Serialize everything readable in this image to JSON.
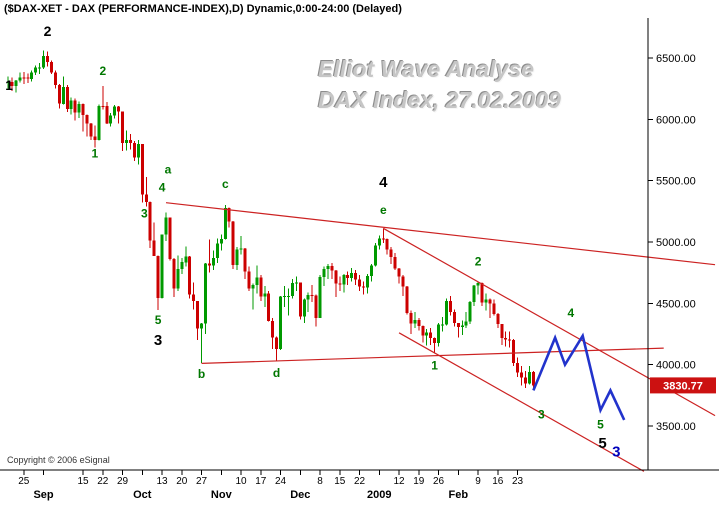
{
  "title_bar": {
    "text": "($DAX-XET - DAX (PERFORMANCE-INDEX),D) Dynamic,0:00-24:00 (Delayed)"
  },
  "watermark": {
    "line1": "Elliot Wave Analyse",
    "line2": "DAX Index, 27.02.2009"
  },
  "copyright": "Copyright © 2006 eSignal",
  "colors": {
    "up": "#009900",
    "down": "#cc0000",
    "trendline": "#cc2222",
    "projection": "#2233cc",
    "wave_green": "#007700",
    "wave_black": "#000000",
    "wave_blue": "#0000bb",
    "axis": "#000000",
    "price_box_bg": "#cc1111",
    "price_box_text": "#ffffff"
  },
  "chart_data": {
    "type": "candlestick",
    "symbol": "$DAX-XET",
    "interval": "D",
    "last_price": 3830.77,
    "ylim": [
      3140,
      6750
    ],
    "y_axis": {
      "values": [
        6500,
        6000,
        5500,
        5000,
        4500,
        4000,
        3500
      ],
      "labels": [
        "6500.00",
        "6000.00",
        "5500.00",
        "5000.00",
        "4500.00",
        "4000.00",
        "3500.00"
      ]
    },
    "price_box": {
      "value": "3830.77",
      "price": 3830.77
    },
    "x_axis": {
      "ticks": [
        {
          "i": 4,
          "label": "25",
          "bold": false
        },
        {
          "i": 9,
          "label": "Sep",
          "bold": true
        },
        {
          "i": 19,
          "label": "15",
          "bold": false
        },
        {
          "i": 24,
          "label": "22",
          "bold": false
        },
        {
          "i": 29,
          "label": "29",
          "bold": false
        },
        {
          "i": 34,
          "label": "Oct",
          "bold": true
        },
        {
          "i": 39,
          "label": "13",
          "bold": false
        },
        {
          "i": 44,
          "label": "20",
          "bold": false
        },
        {
          "i": 49,
          "label": "27",
          "bold": false
        },
        {
          "i": 54,
          "label": "Nov",
          "bold": true
        },
        {
          "i": 59,
          "label": "10",
          "bold": false
        },
        {
          "i": 64,
          "label": "17",
          "bold": false
        },
        {
          "i": 69,
          "label": "24",
          "bold": false
        },
        {
          "i": 74,
          "label": "Dec",
          "bold": true
        },
        {
          "i": 79,
          "label": "8",
          "bold": false
        },
        {
          "i": 84,
          "label": "15",
          "bold": false
        },
        {
          "i": 89,
          "label": "22",
          "bold": false
        },
        {
          "i": 94,
          "label": "2009",
          "bold": true
        },
        {
          "i": 99,
          "label": "12",
          "bold": false
        },
        {
          "i": 104,
          "label": "19",
          "bold": false
        },
        {
          "i": 109,
          "label": "26",
          "bold": false
        },
        {
          "i": 114,
          "label": "Feb",
          "bold": true
        },
        {
          "i": 119,
          "label": "9",
          "bold": false
        },
        {
          "i": 124,
          "label": "16",
          "bold": false
        },
        {
          "i": 129,
          "label": "23",
          "bold": false
        }
      ]
    },
    "ohlc": [
      [
        6300,
        6350,
        6250,
        6305
      ],
      [
        6305,
        6340,
        6230,
        6273
      ],
      [
        6273,
        6320,
        6220,
        6317
      ],
      [
        6317,
        6380,
        6300,
        6342
      ],
      [
        6342,
        6385,
        6290,
        6340
      ],
      [
        6340,
        6375,
        6295,
        6331
      ],
      [
        6331,
        6400,
        6310,
        6383
      ],
      [
        6383,
        6440,
        6360,
        6422
      ],
      [
        6422,
        6460,
        6370,
        6422
      ],
      [
        6422,
        6560,
        6410,
        6518
      ],
      [
        6518,
        6555,
        6430,
        6469
      ],
      [
        6469,
        6480,
        6370,
        6382
      ],
      [
        6382,
        6400,
        6250,
        6279
      ],
      [
        6279,
        6290,
        6090,
        6127
      ],
      [
        6127,
        6350,
        6120,
        6263
      ],
      [
        6263,
        6280,
        6060,
        6085
      ],
      [
        6085,
        6180,
        6040,
        6155
      ],
      [
        6155,
        6170,
        5990,
        6056
      ],
      [
        6056,
        6145,
        6010,
        6125
      ],
      [
        6125,
        6130,
        5900,
        6034
      ],
      [
        6034,
        6040,
        5860,
        5965
      ],
      [
        5965,
        5970,
        5830,
        5861
      ],
      [
        5861,
        5950,
        5770,
        5830
      ],
      [
        5830,
        6120,
        5828,
        6110
      ],
      [
        6110,
        6270,
        6080,
        6107
      ],
      [
        6107,
        6140,
        5960,
        5965
      ],
      [
        5965,
        6050,
        5940,
        6031
      ],
      [
        6031,
        6115,
        6005,
        6105
      ],
      [
        6105,
        6110,
        5965,
        6063
      ],
      [
        6063,
        6064,
        5740,
        5807
      ],
      [
        5807,
        5910,
        5745,
        5831
      ],
      [
        5831,
        5880,
        5755,
        5806
      ],
      [
        5806,
        5825,
        5660,
        5688
      ],
      [
        5688,
        5830,
        5630,
        5797
      ],
      [
        5797,
        5800,
        5320,
        5387
      ],
      [
        5387,
        5530,
        5290,
        5326
      ],
      [
        5326,
        5330,
        4950,
        5013
      ],
      [
        5013,
        5160,
        4885,
        4887
      ],
      [
        4887,
        4890,
        4444,
        4544
      ],
      [
        4544,
        5062,
        4540,
        5062
      ],
      [
        5062,
        5240,
        5010,
        5199
      ],
      [
        5199,
        5200,
        4850,
        4861
      ],
      [
        4861,
        4870,
        4550,
        4622
      ],
      [
        4622,
        4890,
        4600,
        4781
      ],
      [
        4781,
        4870,
        4740,
        4835
      ],
      [
        4835,
        4965,
        4800,
        4883
      ],
      [
        4883,
        4885,
        4540,
        4571
      ],
      [
        4571,
        4670,
        4450,
        4519
      ],
      [
        4519,
        4520,
        4200,
        4295
      ],
      [
        4295,
        4340,
        4014,
        4334
      ],
      [
        4334,
        4830,
        4250,
        4823
      ],
      [
        4823,
        5020,
        4750,
        4808
      ],
      [
        4808,
        4930,
        4770,
        4869
      ],
      [
        4869,
        5030,
        4830,
        4987
      ],
      [
        4987,
        5060,
        4930,
        5026
      ],
      [
        5026,
        5300,
        5020,
        5278
      ],
      [
        5278,
        5280,
        5120,
        5166
      ],
      [
        5166,
        5170,
        4780,
        4813
      ],
      [
        4813,
        4960,
        4770,
        4938
      ],
      [
        4938,
        5050,
        4900,
        4946
      ],
      [
        4946,
        4950,
        4700,
        4761
      ],
      [
        4761,
        4800,
        4600,
        4620
      ],
      [
        4620,
        4660,
        4450,
        4649
      ],
      [
        4649,
        4810,
        4580,
        4710
      ],
      [
        4710,
        4730,
        4520,
        4557
      ],
      [
        4557,
        4640,
        4470,
        4579
      ],
      [
        4579,
        4600,
        4350,
        4354
      ],
      [
        4354,
        4380,
        4127,
        4220
      ],
      [
        4220,
        4230,
        4034,
        4127
      ],
      [
        4127,
        4560,
        4120,
        4554
      ],
      [
        4554,
        4640,
        4470,
        4560
      ],
      [
        4560,
        4620,
        4400,
        4560
      ],
      [
        4560,
        4700,
        4540,
        4665
      ],
      [
        4665,
        4720,
        4600,
        4669
      ],
      [
        4669,
        4670,
        4370,
        4394
      ],
      [
        4394,
        4540,
        4340,
        4531
      ],
      [
        4531,
        4590,
        4430,
        4567
      ],
      [
        4567,
        4650,
        4510,
        4564
      ],
      [
        4564,
        4570,
        4310,
        4381
      ],
      [
        4381,
        4730,
        4380,
        4715
      ],
      [
        4715,
        4800,
        4640,
        4779
      ],
      [
        4779,
        4820,
        4700,
        4805
      ],
      [
        4805,
        4830,
        4700,
        4767
      ],
      [
        4767,
        4770,
        4550,
        4663
      ],
      [
        4663,
        4720,
        4600,
        4655
      ],
      [
        4655,
        4740,
        4590,
        4729
      ],
      [
        4729,
        4760,
        4650,
        4708
      ],
      [
        4708,
        4790,
        4680,
        4748
      ],
      [
        4748,
        4770,
        4650,
        4696
      ],
      [
        4696,
        4730,
        4600,
        4639
      ],
      [
        4639,
        4680,
        4570,
        4629
      ],
      [
        4629,
        4740,
        4580,
        4724
      ],
      [
        4724,
        4820,
        4680,
        4810
      ],
      [
        4810,
        4990,
        4800,
        4973
      ],
      [
        4973,
        5055,
        4940,
        5027
      ],
      [
        5027,
        5112,
        4990,
        5026
      ],
      [
        5026,
        5030,
        4900,
        4937
      ],
      [
        4937,
        4960,
        4820,
        4879
      ],
      [
        4879,
        4910,
        4770,
        4783
      ],
      [
        4783,
        4790,
        4660,
        4719
      ],
      [
        4719,
        4730,
        4560,
        4637
      ],
      [
        4637,
        4640,
        4410,
        4422
      ],
      [
        4422,
        4440,
        4250,
        4336
      ],
      [
        4336,
        4430,
        4300,
        4366
      ],
      [
        4366,
        4380,
        4280,
        4316
      ],
      [
        4316,
        4320,
        4180,
        4239
      ],
      [
        4239,
        4290,
        4155,
        4261
      ],
      [
        4261,
        4300,
        4160,
        4219
      ],
      [
        4219,
        4220,
        4090,
        4178
      ],
      [
        4178,
        4340,
        4150,
        4326
      ],
      [
        4326,
        4390,
        4270,
        4327
      ],
      [
        4327,
        4540,
        4320,
        4519
      ],
      [
        4519,
        4560,
        4400,
        4428
      ],
      [
        4428,
        4450,
        4310,
        4338
      ],
      [
        4338,
        4340,
        4220,
        4307
      ],
      [
        4307,
        4360,
        4240,
        4319
      ],
      [
        4319,
        4430,
        4300,
        4350
      ],
      [
        4350,
        4520,
        4330,
        4510
      ],
      [
        4510,
        4650,
        4480,
        4645
      ],
      [
        4645,
        4675,
        4570,
        4667
      ],
      [
        4667,
        4670,
        4480,
        4505
      ],
      [
        4505,
        4580,
        4440,
        4531
      ],
      [
        4531,
        4540,
        4380,
        4500
      ],
      [
        4500,
        4530,
        4400,
        4413
      ],
      [
        4413,
        4420,
        4300,
        4330
      ],
      [
        4330,
        4330,
        4160,
        4217
      ],
      [
        4217,
        4270,
        4150,
        4204
      ],
      [
        4204,
        4270,
        4140,
        4202
      ],
      [
        4202,
        4210,
        3990,
        4014
      ],
      [
        4014,
        4060,
        3900,
        3936
      ],
      [
        3936,
        3990,
        3830,
        3896
      ],
      [
        3896,
        3950,
        3810,
        3847
      ],
      [
        3847,
        3990,
        3840,
        3942
      ],
      [
        3942,
        3950,
        3800,
        3831
      ]
    ],
    "annotations": {
      "wave_labels": [
        {
          "text": "1",
          "i": 0.3,
          "price": 6240,
          "color": "black",
          "size": 14
        },
        {
          "text": "2",
          "i": 10,
          "price": 6680,
          "color": "black",
          "size": 14
        },
        {
          "text": "1",
          "i": 22,
          "price": 5690,
          "color": "green",
          "size": 12
        },
        {
          "text": "2",
          "i": 24,
          "price": 6360,
          "color": "green",
          "size": 12
        },
        {
          "text": "3",
          "i": 34.5,
          "price": 5200,
          "color": "green",
          "size": 12
        },
        {
          "text": "4",
          "i": 39,
          "price": 5410,
          "color": "green",
          "size": 12
        },
        {
          "text": "a",
          "i": 40.5,
          "price": 5560,
          "color": "green",
          "size": 12
        },
        {
          "text": "5",
          "i": 38,
          "price": 4330,
          "color": "green",
          "size": 12
        },
        {
          "text": "3",
          "i": 38,
          "price": 4160,
          "color": "black",
          "size": 15
        },
        {
          "text": "b",
          "i": 49,
          "price": 3890,
          "color": "green",
          "size": 12
        },
        {
          "text": "c",
          "i": 55,
          "price": 5440,
          "color": "green",
          "size": 12
        },
        {
          "text": "d",
          "i": 68,
          "price": 3900,
          "color": "green",
          "size": 12
        },
        {
          "text": "4",
          "i": 95,
          "price": 5450,
          "color": "black",
          "size": 15
        },
        {
          "text": "e",
          "i": 95,
          "price": 5230,
          "color": "green",
          "size": 12
        },
        {
          "text": "1",
          "i": 108,
          "price": 3960,
          "color": "green",
          "size": 12
        },
        {
          "text": "2",
          "i": 119,
          "price": 4810,
          "color": "green",
          "size": 12
        },
        {
          "text": "3",
          "i": 135,
          "price": 3560,
          "color": "green",
          "size": 12
        },
        {
          "text": "4",
          "i": 142.5,
          "price": 4390,
          "color": "green",
          "size": 12
        },
        {
          "text": "5",
          "i": 150,
          "price": 3480,
          "color": "green",
          "size": 12
        },
        {
          "text": "5",
          "i": 150.5,
          "price": 3320,
          "color": "black",
          "size": 15
        },
        {
          "text": "3",
          "i": 154,
          "price": 3250,
          "color": "blue",
          "size": 15
        }
      ],
      "trendlines": [
        {
          "i1": 40,
          "p1": 5320,
          "i2": 179,
          "p2": 4815
        },
        {
          "i1": 49,
          "p1": 4010,
          "i2": 166,
          "p2": 4135
        },
        {
          "i1": 95,
          "p1": 5112,
          "i2": 179,
          "p2": 3585
        },
        {
          "i1": 99,
          "p1": 4260,
          "i2": 161,
          "p2": 3130
        }
      ],
      "projection": {
        "points": [
          [
            133,
            3790
          ],
          [
            138.5,
            4220
          ],
          [
            141,
            4000
          ],
          [
            145.5,
            4235
          ],
          [
            150,
            3630
          ],
          [
            152.5,
            3790
          ],
          [
            156,
            3550
          ]
        ]
      }
    }
  }
}
